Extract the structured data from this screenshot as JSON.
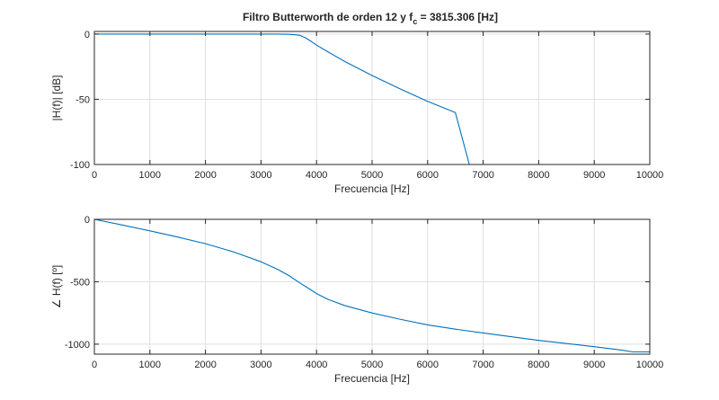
{
  "title": {
    "main": "Filtro Butterworth de orden 12 y f",
    "subscript": "c",
    "suffix": " = 3815.306 [Hz]"
  },
  "colors": {
    "series": "#0072bd",
    "grid": "#dfdfdf",
    "axes": "#262626"
  },
  "chart_data": [
    {
      "type": "line",
      "xlabel": "Frecuencia [Hz]",
      "ylabel": "|H(f)| [dB]",
      "xlim": [
        0,
        10000
      ],
      "ylim": [
        -100,
        2
      ],
      "xticks": [
        0,
        1000,
        2000,
        3000,
        4000,
        5000,
        6000,
        7000,
        8000,
        9000,
        10000
      ],
      "yticks": [
        0,
        -50,
        -100
      ],
      "grid": true,
      "series": [
        {
          "x": [
            0,
            1000,
            2000,
            3000,
            3300,
            3500,
            3600,
            3700,
            3800,
            3900,
            4000,
            4200,
            4500,
            5000,
            5500,
            6000,
            6500,
            6750
          ],
          "y": [
            0,
            0,
            0,
            0,
            -0.02,
            -0.2,
            -0.45,
            -0.95,
            -2.8,
            -5.5,
            -8.5,
            -13.5,
            -20.8,
            -31.8,
            -42,
            -51.6,
            -60.2,
            -100
          ]
        }
      ]
    },
    {
      "type": "line",
      "xlabel": "Frecuencia [Hz]",
      "ylabel": "∠ H(f) [º]",
      "xlim": [
        0,
        10000
      ],
      "ylim": [
        -1080,
        0
      ],
      "xticks": [
        0,
        1000,
        2000,
        3000,
        4000,
        5000,
        6000,
        7000,
        8000,
        9000,
        10000
      ],
      "yticks": [
        0,
        -500,
        -1000
      ],
      "grid": true,
      "series": [
        {
          "x": [
            0,
            500,
            1000,
            1500,
            2000,
            2500,
            3000,
            3300,
            3500,
            3700,
            3900,
            4000,
            4200,
            4500,
            5000,
            5500,
            6000,
            6500,
            7000,
            7500,
            8000,
            8500,
            9000,
            9500,
            9700,
            10000
          ],
          "y": [
            0,
            -45,
            -92,
            -142,
            -195,
            -260,
            -340,
            -400,
            -450,
            -510,
            -565,
            -595,
            -640,
            -690,
            -750,
            -800,
            -845,
            -880,
            -910,
            -940,
            -970,
            -995,
            -1020,
            -1048,
            -1062,
            -1062
          ]
        }
      ]
    }
  ]
}
